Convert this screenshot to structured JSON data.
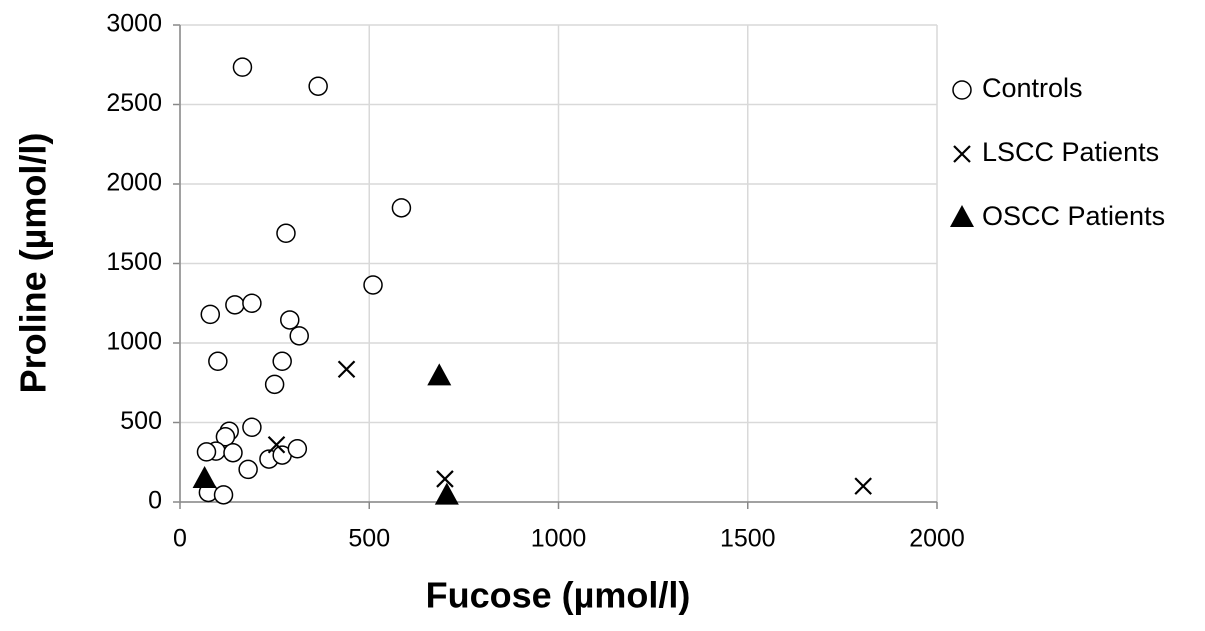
{
  "chart_data": {
    "type": "scatter",
    "x_label": "Fucose (µmol/l)",
    "y_label": "Proline (µmol/l)",
    "xlim": [
      0,
      2000
    ],
    "xticks": [
      0,
      500,
      1000,
      1500,
      2000
    ],
    "ylim": [
      0,
      3000
    ],
    "yticks": [
      0,
      500,
      1000,
      1500,
      2000,
      2500,
      3000
    ],
    "grid": true,
    "legend": "right",
    "series": [
      {
        "name": "Controls",
        "marker": "circle",
        "color": "#000000",
        "x": [
          165,
          365,
          585,
          280,
          510,
          80,
          145,
          190,
          290,
          315,
          100,
          270,
          250,
          190,
          130,
          120,
          95,
          70,
          140,
          235,
          270,
          310,
          180,
          75,
          115
        ],
        "values": [
          2735,
          2615,
          1850,
          1690,
          1365,
          1180,
          1240,
          1250,
          1145,
          1045,
          885,
          885,
          740,
          470,
          445,
          410,
          320,
          315,
          310,
          270,
          295,
          335,
          205,
          60,
          45
        ]
      },
      {
        "name": "LSCC Patients",
        "marker": "x",
        "color": "#000000",
        "x": [
          440,
          255,
          700,
          1805
        ],
        "values": [
          835,
          360,
          145,
          100
        ]
      },
      {
        "name": "OSCC Patients",
        "marker": "triangle",
        "color": "#000000",
        "x": [
          685,
          65,
          705
        ],
        "values": [
          790,
          145,
          40
        ]
      }
    ]
  }
}
